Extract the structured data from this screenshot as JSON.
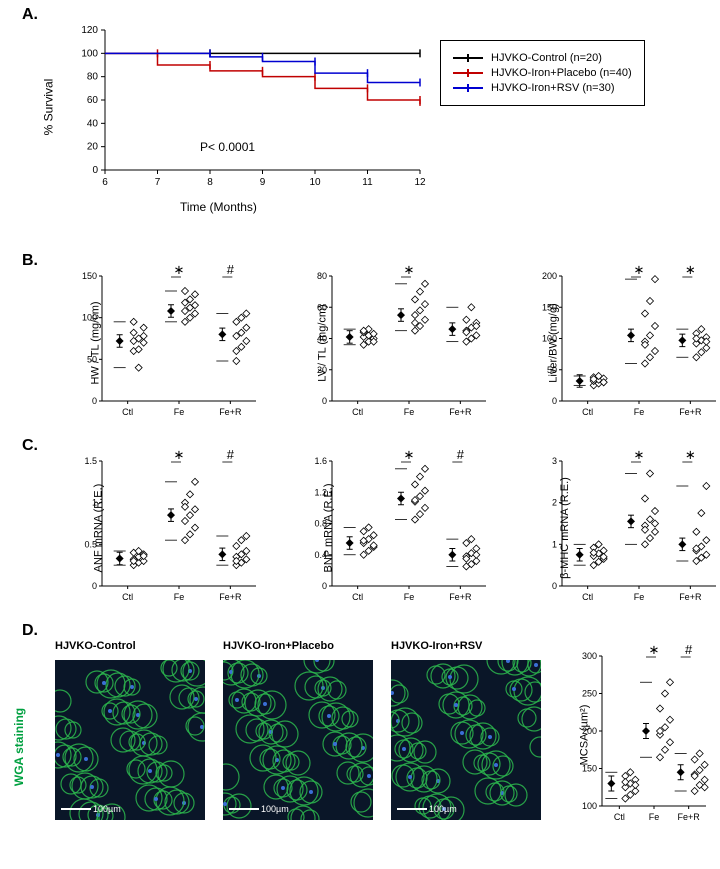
{
  "panelA": {
    "label": "A.",
    "ylabel": "% Survival",
    "xlabel": "Time (Months)",
    "pvalue": "P< 0.0001",
    "xticks": [
      6,
      7,
      8,
      9,
      10,
      11,
      12
    ],
    "yticks": [
      0,
      20,
      40,
      60,
      80,
      100,
      120
    ],
    "xlim": [
      6,
      12
    ],
    "ylim": [
      0,
      120
    ],
    "legend": [
      {
        "label": "HJVKO-Control (n=20)",
        "color": "#000000"
      },
      {
        "label": "HJVKO-Iron+Placebo (n=40)",
        "color": "#c00000"
      },
      {
        "label": "HJVKO-Iron+RSV (n=30)",
        "color": "#0000d0"
      }
    ],
    "series": [
      {
        "color": "#000000",
        "points": [
          [
            6,
            100
          ],
          [
            8,
            100
          ],
          [
            12,
            100
          ]
        ]
      },
      {
        "color": "#c00000",
        "points": [
          [
            6,
            100
          ],
          [
            7,
            100
          ],
          [
            7,
            90
          ],
          [
            8,
            90
          ],
          [
            8,
            85
          ],
          [
            9,
            85
          ],
          [
            9,
            80
          ],
          [
            10,
            80
          ],
          [
            10,
            70
          ],
          [
            11,
            70
          ],
          [
            11,
            60
          ],
          [
            12,
            60
          ],
          [
            12,
            55
          ]
        ]
      },
      {
        "color": "#0000d0",
        "points": [
          [
            6,
            100
          ],
          [
            8,
            100
          ],
          [
            8,
            97
          ],
          [
            9,
            97
          ],
          [
            9,
            93
          ],
          [
            10,
            93
          ],
          [
            10,
            83
          ],
          [
            11,
            83
          ],
          [
            11,
            75
          ],
          [
            12,
            75
          ]
        ]
      }
    ]
  },
  "panelB": {
    "label": "B.",
    "charts": [
      {
        "ylabel": "HW / TL (mg/cm)",
        "yticks": [
          0,
          50,
          100,
          150
        ],
        "ylim": [
          0,
          150
        ],
        "groups": [
          "Ctl",
          "Fe",
          "Fe+R"
        ],
        "means": [
          72,
          108,
          80
        ],
        "sig": [
          null,
          "*",
          "#"
        ],
        "points": [
          [
            60,
            62,
            70,
            72,
            75,
            78,
            82,
            40,
            88,
            95
          ],
          [
            95,
            100,
            105,
            108,
            112,
            115,
            118,
            122,
            128,
            132
          ],
          [
            60,
            65,
            72,
            78,
            82,
            88,
            95,
            100,
            105,
            48
          ]
        ]
      },
      {
        "ylabel": "LV / TL (mg/cm)",
        "yticks": [
          0,
          20,
          40,
          60,
          80
        ],
        "ylim": [
          0,
          80
        ],
        "groups": [
          "Ctl",
          "Fe",
          "Fe+R"
        ],
        "means": [
          41,
          55,
          46
        ],
        "sig": [
          null,
          "*",
          null
        ],
        "points": [
          [
            36,
            38,
            40,
            41,
            42,
            43,
            44,
            46,
            38,
            45
          ],
          [
            45,
            48,
            52,
            55,
            58,
            62,
            65,
            70,
            75,
            50
          ],
          [
            38,
            40,
            42,
            45,
            47,
            50,
            52,
            60,
            48,
            44
          ]
        ]
      },
      {
        "ylabel": "Liver/BW (mg/g)",
        "yticks": [
          0,
          50,
          100,
          150,
          200
        ],
        "ylim": [
          0,
          200
        ],
        "groups": [
          "Ctl",
          "Fe",
          "Fe+R"
        ],
        "means": [
          32,
          105,
          97
        ],
        "sig": [
          null,
          "*",
          "*"
        ],
        "points": [
          [
            25,
            28,
            30,
            32,
            34,
            36,
            38,
            40,
            30,
            35
          ],
          [
            60,
            70,
            80,
            95,
            105,
            120,
            140,
            160,
            195,
            90
          ],
          [
            70,
            78,
            85,
            92,
            97,
            102,
            108,
            115,
            95,
            100
          ]
        ]
      }
    ]
  },
  "panelC": {
    "label": "C.",
    "charts": [
      {
        "ylabel": "ANF mRNA (R.E.)",
        "yticks": [
          0.0,
          0.5,
          1.0,
          1.5
        ],
        "ylim": [
          0,
          1.5
        ],
        "groups": [
          "Ctl",
          "Fe",
          "Fe+R"
        ],
        "means": [
          0.33,
          0.85,
          0.38
        ],
        "sig": [
          null,
          "*",
          "#"
        ],
        "points": [
          [
            0.25,
            0.28,
            0.3,
            0.32,
            0.35,
            0.38,
            0.4,
            0.42,
            0.36,
            0.3
          ],
          [
            0.55,
            0.62,
            0.7,
            0.78,
            0.85,
            0.92,
            1.0,
            1.1,
            1.25,
            0.95
          ],
          [
            0.25,
            0.28,
            0.32,
            0.35,
            0.38,
            0.42,
            0.48,
            0.55,
            0.6,
            0.3
          ]
        ]
      },
      {
        "ylabel": "BNP mRNA (R.E.)",
        "yticks": [
          0.0,
          0.4,
          0.8,
          1.2,
          1.6
        ],
        "ylim": [
          0,
          1.6
        ],
        "groups": [
          "Ctl",
          "Fe",
          "Fe+R"
        ],
        "means": [
          0.55,
          1.12,
          0.4
        ],
        "sig": [
          null,
          "*",
          "#"
        ],
        "points": [
          [
            0.4,
            0.45,
            0.5,
            0.55,
            0.6,
            0.65,
            0.7,
            0.75,
            0.52,
            0.58
          ],
          [
            0.85,
            0.92,
            1.0,
            1.08,
            1.15,
            1.22,
            1.3,
            1.4,
            1.5,
            1.1
          ],
          [
            0.25,
            0.28,
            0.32,
            0.38,
            0.42,
            0.48,
            0.55,
            0.6,
            0.4,
            0.35
          ]
        ]
      },
      {
        "ylabel": "β-MHC mRNA (R.E.)",
        "yticks": [
          0,
          1,
          2,
          3
        ],
        "ylim": [
          0,
          3
        ],
        "groups": [
          "Ctl",
          "Fe",
          "Fe+R"
        ],
        "means": [
          0.75,
          1.55,
          1.0
        ],
        "sig": [
          null,
          "*",
          "*"
        ],
        "points": [
          [
            0.5,
            0.58,
            0.65,
            0.72,
            0.78,
            0.85,
            0.92,
            1.0,
            0.7,
            0.8
          ],
          [
            1.0,
            1.15,
            1.3,
            1.45,
            1.6,
            1.8,
            2.1,
            2.7,
            1.5,
            1.35
          ],
          [
            0.6,
            0.68,
            0.75,
            0.85,
            0.95,
            1.1,
            1.3,
            1.75,
            2.4,
            0.9
          ]
        ]
      }
    ]
  },
  "panelD": {
    "label": "D.",
    "wga_label": "WGA  staining",
    "images": [
      "HJVKO-Control",
      "HJVKO-Iron+Placebo",
      "HJVKO-Iron+RSV"
    ],
    "scalebar": "100µm",
    "mcsa": {
      "ylabel": "MCSA (µm²)",
      "yticks": [
        100,
        150,
        200,
        250,
        300
      ],
      "ylim": [
        100,
        300
      ],
      "groups": [
        "Ctl",
        "Fe",
        "Fe+R"
      ],
      "means": [
        130,
        200,
        145
      ],
      "sig": [
        null,
        "*",
        "#"
      ],
      "points": [
        [
          110,
          115,
          120,
          125,
          130,
          135,
          140,
          145,
          128,
          132
        ],
        [
          165,
          175,
          185,
          195,
          205,
          215,
          230,
          250,
          265,
          200
        ],
        [
          120,
          128,
          135,
          142,
          148,
          155,
          162,
          170,
          125,
          140
        ]
      ]
    }
  },
  "colors": {
    "black": "#000000",
    "red": "#c00000",
    "blue": "#0000d0",
    "marker_fill": "#ffffff",
    "marker_stroke": "#000000",
    "mean_fill": "#000000",
    "wga_green": "#00a040",
    "histology_bg": "#0a1628"
  }
}
